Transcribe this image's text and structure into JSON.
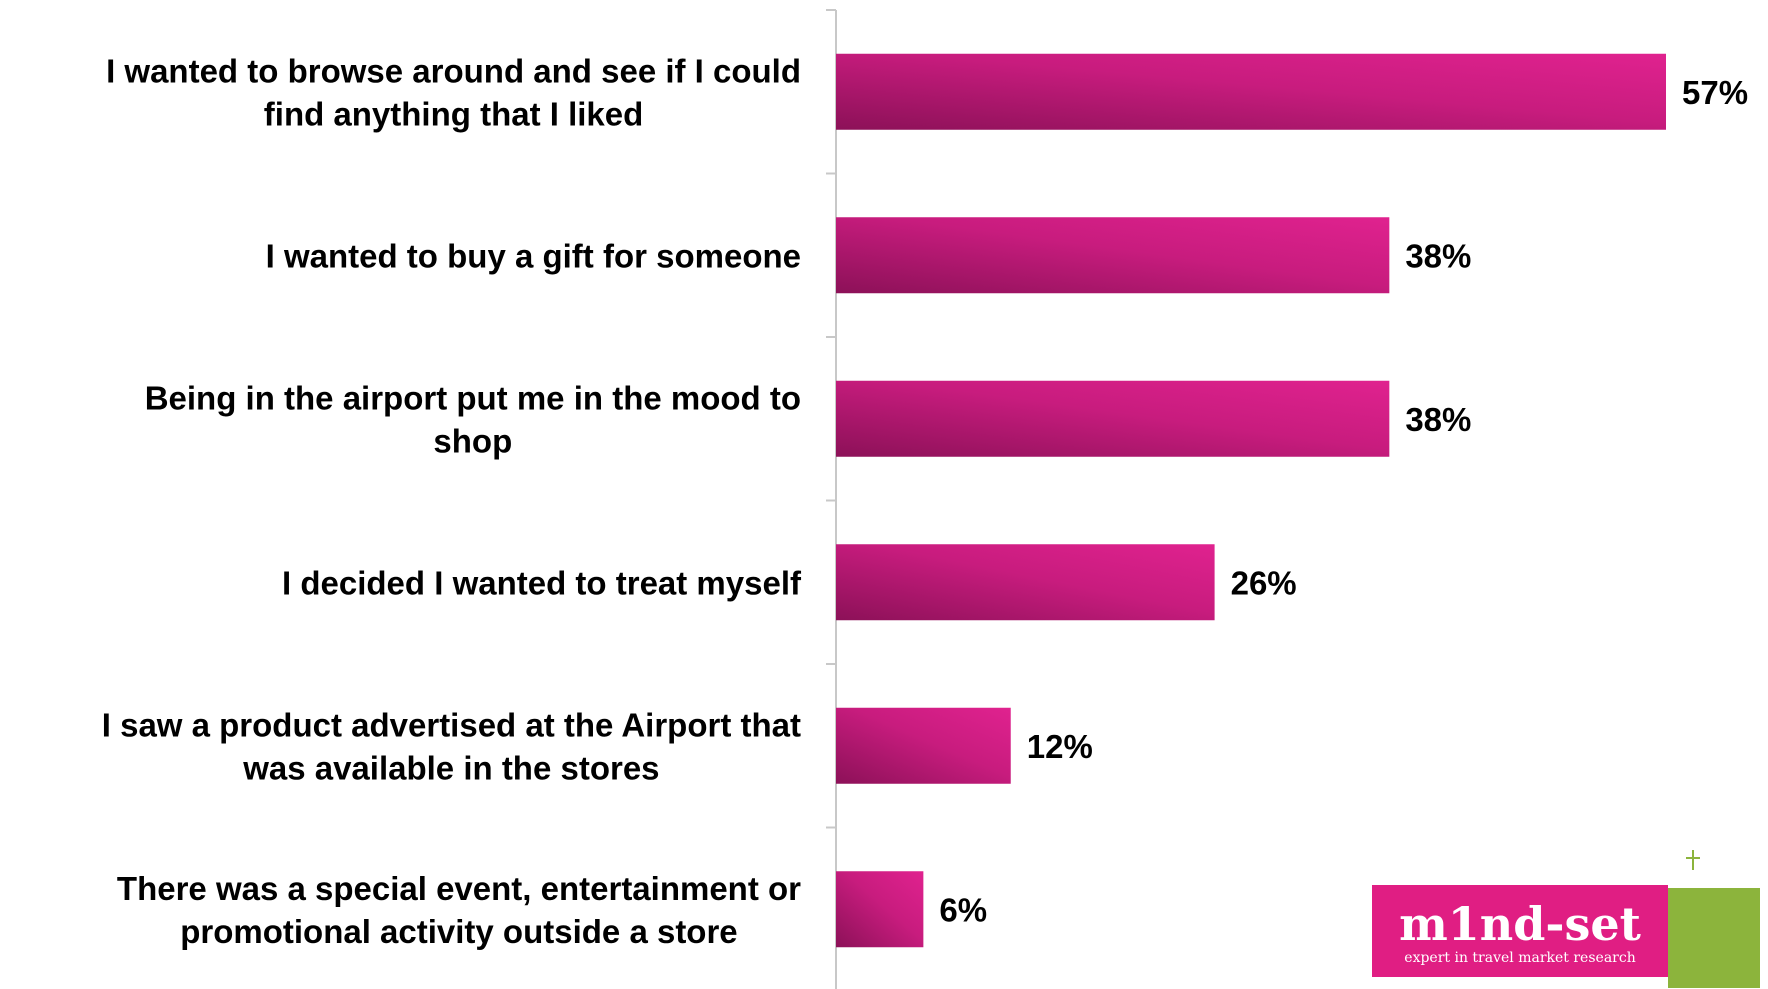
{
  "chart_data": {
    "type": "bar",
    "orientation": "horizontal",
    "title": "",
    "xlabel": "",
    "ylabel": "",
    "categories": [
      [
        "I wanted to browse around and see if I could",
        "find anything that I liked"
      ],
      [
        "I wanted to buy a gift for someone"
      ],
      [
        "Being in the airport put me in the mood to",
        "shop"
      ],
      [
        "I decided I wanted to treat myself"
      ],
      [
        "I saw a product advertised at the Airport that",
        "was available in the stores"
      ],
      [
        "There was a special event, entertainment or",
        "promotional activity outside a store"
      ]
    ],
    "values": [
      57,
      38,
      38,
      26,
      12,
      6
    ],
    "value_labels": [
      "57%",
      "38%",
      "38%",
      "26%",
      "12%",
      "6%"
    ],
    "unit": "%",
    "xlim": [
      0,
      57
    ],
    "grid": false,
    "legend": "none",
    "bar_color_light": "#e0228f",
    "bar_color_dark": "#8c1158"
  },
  "logo": {
    "name": "mind-set",
    "wordmark": "m1nd-set",
    "tagline": "expert in travel market research",
    "pink": "#e01e83",
    "green": "#8cb43c"
  }
}
